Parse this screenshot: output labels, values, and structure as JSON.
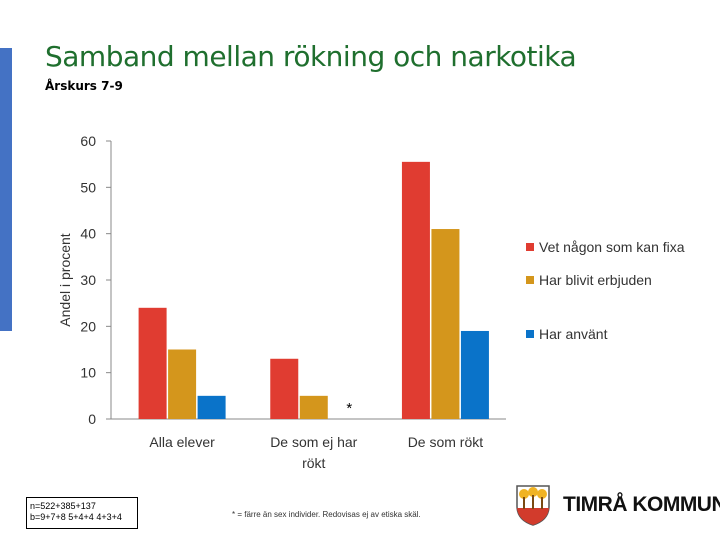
{
  "slide": {
    "title": "Samband mellan rökning och narkotika",
    "subtitle": "Årskurs 7-9",
    "note_line1": "n=522+385+137",
    "note_line2": "b=9+7+8 5+4+4 4+3+4",
    "footnote": "* = färre än sex individer. Redovisas ej av etiska skäl.",
    "logo_text": "TIMRÅ KOMMUN"
  },
  "chart_data": {
    "type": "bar",
    "title": "",
    "xlabel": "",
    "ylabel": "Andel i procent",
    "ylim": [
      0,
      60
    ],
    "yticks": [
      0,
      10,
      20,
      30,
      40,
      50,
      60
    ],
    "categories": [
      "Alla elever",
      "De som ej har rökt",
      "De som rökt"
    ],
    "series": [
      {
        "name": "Vet någon som kan fixa",
        "color": "#e03c31",
        "values": [
          24,
          13,
          55.5
        ]
      },
      {
        "name": "Har blivit erbjuden",
        "color": "#d4961c",
        "values": [
          15,
          5,
          41
        ]
      },
      {
        "name": "Har använt",
        "color": "#0a73c9",
        "values": [
          5,
          null,
          19
        ]
      }
    ],
    "annotation": "*",
    "legend_position": "right"
  }
}
